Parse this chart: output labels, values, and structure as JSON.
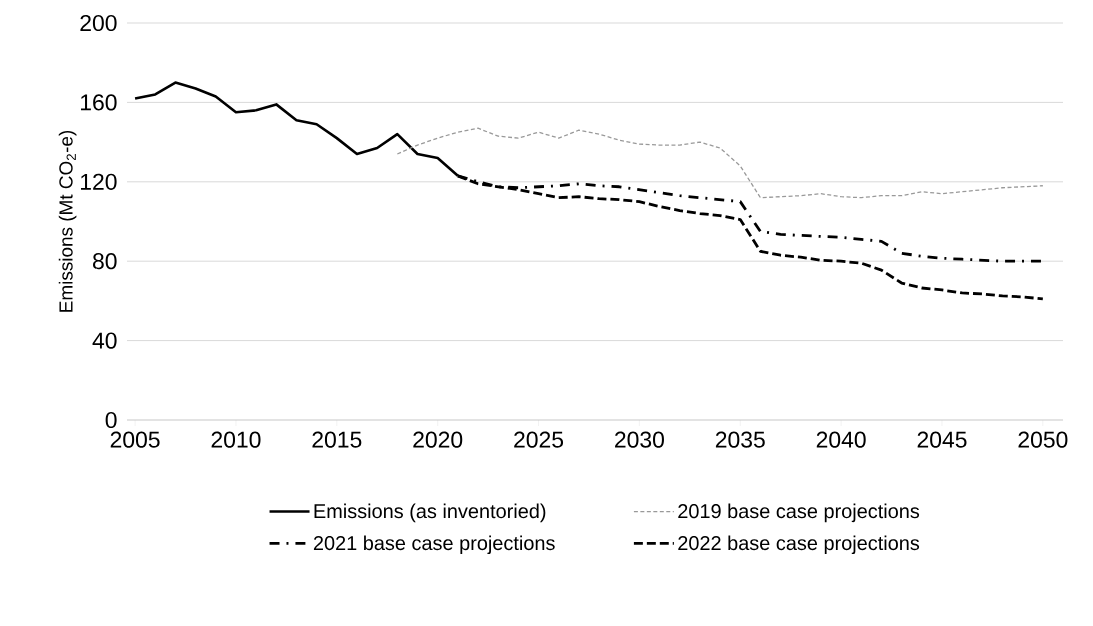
{
  "chart_data": {
    "type": "line",
    "ylabel": "Emissions (Mt CO$_{2}$-e)",
    "xlim": [
      2004.6,
      2051
    ],
    "xticks": [
      2005,
      2010,
      2015,
      2020,
      2025,
      2030,
      2035,
      2040,
      2045,
      2050
    ],
    "ylim": [
      0,
      200
    ],
    "yticks": [
      0,
      40,
      80,
      120,
      160,
      200
    ],
    "grid": "y",
    "legend": "bottom",
    "series": [
      {
        "name": "Emissions (as inventoried)",
        "color": "#000000",
        "line_style": "solid",
        "x": [
          2005,
          2006,
          2007,
          2008,
          2009,
          2010,
          2011,
          2012,
          2013,
          2014,
          2015,
          2016,
          2017,
          2018,
          2019,
          2020,
          2021
        ],
        "values": [
          162,
          164,
          170,
          167,
          163,
          155,
          156,
          159,
          151,
          149,
          142,
          134,
          137,
          144,
          134,
          132,
          123
        ]
      },
      {
        "name": "2019 base case projections",
        "color": "#999999",
        "line_style": "dotted",
        "x": [
          2018,
          2019,
          2020,
          2021,
          2022,
          2023,
          2024,
          2025,
          2026,
          2027,
          2028,
          2029,
          2030,
          2031,
          2032,
          2033,
          2034,
          2035,
          2036,
          2037,
          2038,
          2039,
          2040,
          2041,
          2042,
          2043,
          2044,
          2045,
          2046,
          2047,
          2048,
          2049,
          2050
        ],
        "values": [
          134,
          138.5,
          142,
          145,
          147,
          143,
          142,
          145,
          142,
          146,
          144,
          141,
          139,
          138.5,
          138.5,
          140,
          137,
          128,
          112,
          112.5,
          113,
          114,
          112.5,
          112,
          113,
          113,
          115,
          114,
          115,
          116,
          117,
          117.5,
          118
        ]
      },
      {
        "name": "2021  base case projections",
        "color": "#000000",
        "line_style": "dashdot",
        "x": [
          2021,
          2022,
          2023,
          2024,
          2025,
          2026,
          2027,
          2028,
          2029,
          2030,
          2031,
          2032,
          2033,
          2034,
          2035,
          2036,
          2037,
          2038,
          2039,
          2040,
          2041,
          2042,
          2043,
          2044,
          2045,
          2046,
          2047,
          2048,
          2049,
          2050
        ],
        "values": [
          123,
          120,
          117.5,
          117,
          117.5,
          118,
          119,
          118,
          117.5,
          116,
          114.5,
          113,
          112,
          111,
          110,
          95,
          93.5,
          93,
          92.5,
          92,
          91,
          90,
          84,
          82.5,
          81.5,
          81,
          80.5,
          80,
          80,
          80
        ]
      },
      {
        "name": "2022  base case projections",
        "color": "#000000",
        "line_style": "dashed",
        "x": [
          2021,
          2022,
          2023,
          2024,
          2025,
          2026,
          2027,
          2028,
          2029,
          2030,
          2031,
          2032,
          2033,
          2034,
          2035,
          2036,
          2037,
          2038,
          2039,
          2040,
          2041,
          2042,
          2043,
          2044,
          2045,
          2046,
          2047,
          2048,
          2049,
          2050
        ],
        "values": [
          123,
          119,
          117.5,
          116,
          114,
          112,
          112.5,
          111.5,
          111,
          110,
          107.5,
          105.5,
          104,
          103,
          101,
          85,
          83,
          82,
          80.5,
          80,
          79,
          75.5,
          69,
          66.5,
          65.5,
          64,
          63.5,
          62.5,
          62,
          61
        ]
      }
    ]
  }
}
